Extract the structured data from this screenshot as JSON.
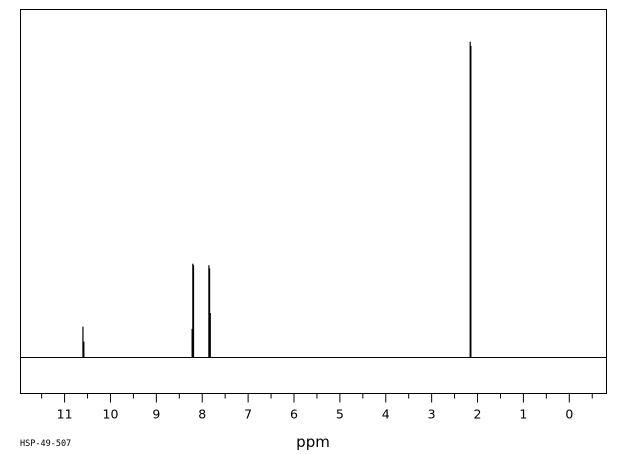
{
  "chart_data": {
    "type": "line",
    "title": "",
    "xlabel": "ppm",
    "ylabel": "",
    "x_reversed": true,
    "xlim": [
      11.95,
      -0.8
    ],
    "ylim": [
      0,
      1
    ],
    "grid": false,
    "legend": "none",
    "x_ticks": [
      11,
      10,
      9,
      8,
      7,
      6,
      5,
      4,
      3,
      2,
      1,
      0
    ],
    "x_minor_step": 0.5,
    "spectrum_code": "HSP-49-507",
    "colors": {
      "line": "#000000",
      "frame": "#000000",
      "background": "#ffffff"
    },
    "peaks": [
      {
        "shift": 10.6,
        "intensity": 0.097
      },
      {
        "shift": 10.58,
        "intensity": 0.05
      },
      {
        "shift": 8.22,
        "intensity": 0.09
      },
      {
        "shift": 8.205,
        "intensity": 0.295
      },
      {
        "shift": 8.19,
        "intensity": 0.29
      },
      {
        "shift": 7.855,
        "intensity": 0.29
      },
      {
        "shift": 7.84,
        "intensity": 0.28
      },
      {
        "shift": 7.825,
        "intensity": 0.14
      },
      {
        "shift": 2.16,
        "intensity": 0.993
      },
      {
        "shift": 2.145,
        "intensity": 0.98
      }
    ]
  }
}
